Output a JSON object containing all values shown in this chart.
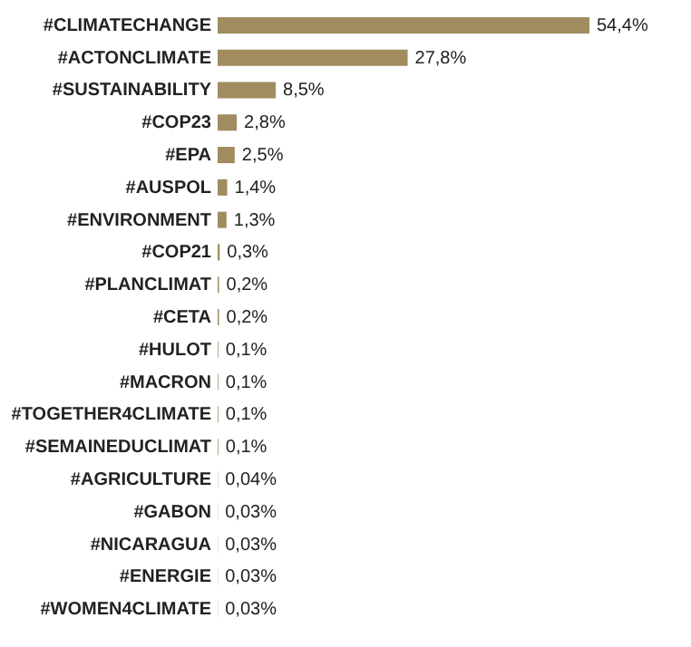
{
  "chart_data": {
    "type": "bar",
    "orientation": "horizontal",
    "color": "#a08c5f",
    "categories": [
      "#CLIMATECHANGE",
      "#ACTONCLIMATE",
      "#SUSTAINABILITY",
      "#COP23",
      "#EPA",
      "#AUSPOL",
      "#ENVIRONMENT",
      "#COP21",
      "#PLANCLIMAT",
      "#CETA",
      "#HULOT",
      "#MACRON",
      "#TOGETHER4CLIMATE",
      "#SEMAINEDUCLIMAT",
      "#AGRICULTURE",
      "#GABON",
      "#NICARAGUA",
      "#ENERGIE",
      "#WOMEN4CLIMATE"
    ],
    "values": [
      54.4,
      27.8,
      8.5,
      2.8,
      2.5,
      1.4,
      1.3,
      0.3,
      0.2,
      0.2,
      0.1,
      0.1,
      0.1,
      0.1,
      0.04,
      0.03,
      0.03,
      0.03,
      0.03
    ],
    "value_labels": [
      "54,4%",
      "27,8%",
      "8,5%",
      "2,8%",
      "2,5%",
      "1,4%",
      "1,3%",
      "0,3%",
      "0,2%",
      "0,2%",
      "0,1%",
      "0,1%",
      "0,1%",
      "0,1%",
      "0,04%",
      "0,03%",
      "0,03%",
      "0,03%",
      "0,03%"
    ],
    "grid": false
  }
}
